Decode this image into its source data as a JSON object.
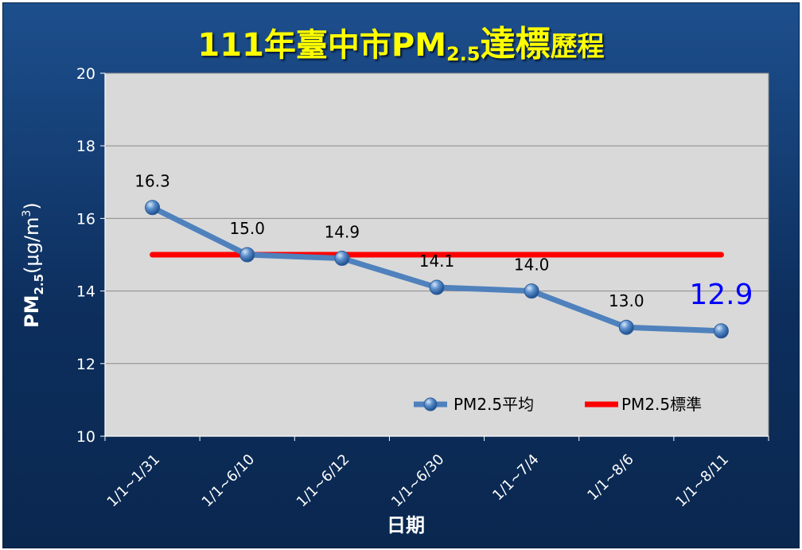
{
  "title": {
    "prefix": "111年臺中市PM",
    "subscript": "2.5",
    "emphasis": "達標",
    "suffix": "歷程"
  },
  "colors": {
    "background": "#1a4a86",
    "plot_area": "#d9d9d9",
    "title": "#ffff00",
    "series_avg": "#4f81bd",
    "series_standard": "#ff0000",
    "last_label": "#0000ff"
  },
  "chart_data": {
    "type": "line",
    "categories": [
      "1/1~1/31",
      "1/1~6/10",
      "1/1~6/12",
      "1/1~6/30",
      "1/1~7/4",
      "1/1~8/6",
      "1/1~8/11"
    ],
    "series": [
      {
        "name": "PM2.5平均",
        "values": [
          16.3,
          15.0,
          14.9,
          14.1,
          14.0,
          13.0,
          12.9
        ],
        "marker": "circle"
      },
      {
        "name": "PM2.5標準",
        "values": [
          15,
          15,
          15,
          15,
          15,
          15,
          15
        ],
        "marker": "none"
      }
    ],
    "data_labels": [
      "16.3",
      "15.0",
      "14.9",
      "14.1",
      "14.0",
      "13.0",
      "12.9"
    ],
    "xlabel": "日期",
    "ylabel": {
      "main": "PM",
      "sub": "2.5",
      "unit": "(μg/m",
      "sup": "3",
      "close": ")"
    },
    "ylim": [
      10,
      20
    ],
    "yticks": [
      10,
      12,
      14,
      16,
      18,
      20
    ],
    "grid": true,
    "legend": "bottom-right"
  }
}
